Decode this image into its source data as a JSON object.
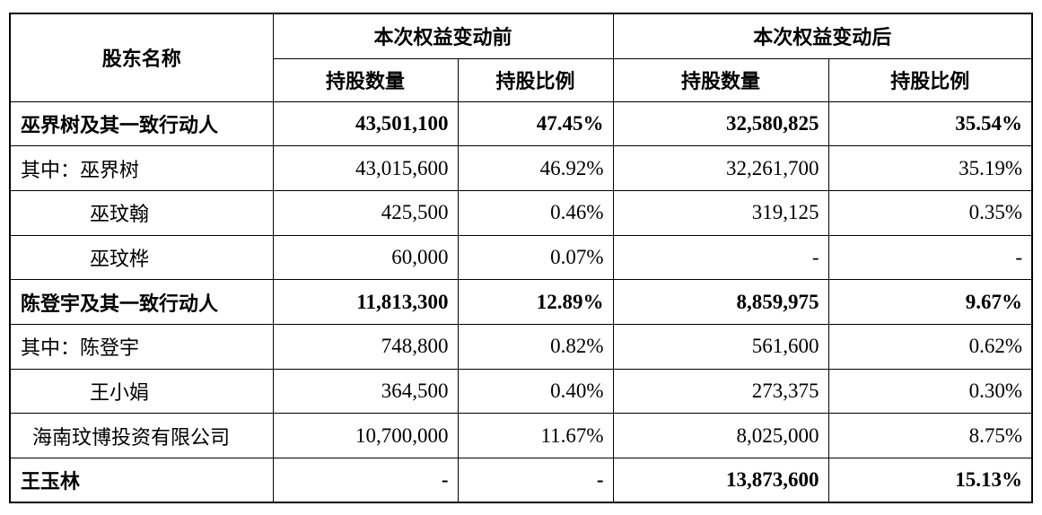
{
  "header": {
    "shareholder_name": "股东名称",
    "before_group": "本次权益变动前",
    "after_group": "本次权益变动后",
    "shares": "持股数量",
    "ratio": "持股比例"
  },
  "rows": [
    {
      "name": "巫界树及其一致行动人",
      "before_shares": "43,501,100",
      "before_ratio": "47.45%",
      "after_shares": "32,580,825",
      "after_ratio": "35.54%",
      "bold": true
    },
    {
      "name": "其中：巫界树",
      "before_shares": "43,015,600",
      "before_ratio": "46.92%",
      "after_shares": "32,261,700",
      "after_ratio": "35.19%"
    },
    {
      "name": "巫玟翰",
      "before_shares": "425,500",
      "before_ratio": "0.46%",
      "after_shares": "319,125",
      "after_ratio": "0.35%"
    },
    {
      "name": "巫玟桦",
      "before_shares": "60,000",
      "before_ratio": "0.07%",
      "after_shares": "-",
      "after_ratio": "-"
    },
    {
      "name": "陈登宇及其一致行动人",
      "before_shares": "11,813,300",
      "before_ratio": "12.89%",
      "after_shares": "8,859,975",
      "after_ratio": "9.67%",
      "bold": true
    },
    {
      "name": "其中：陈登宇",
      "before_shares": "748,800",
      "before_ratio": "0.82%",
      "after_shares": "561,600",
      "after_ratio": "0.62%"
    },
    {
      "name": "王小娟",
      "before_shares": "364,500",
      "before_ratio": "0.40%",
      "after_shares": "273,375",
      "after_ratio": "0.30%"
    },
    {
      "name": "海南玟博投资有限公司",
      "before_shares": "10,700,000",
      "before_ratio": "11.67%",
      "after_shares": "8,025,000",
      "after_ratio": "8.75%"
    },
    {
      "name": "王玉林",
      "before_shares": "-",
      "before_ratio": "-",
      "after_shares": "13,873,600",
      "after_ratio": "15.13%",
      "bold": true
    }
  ]
}
